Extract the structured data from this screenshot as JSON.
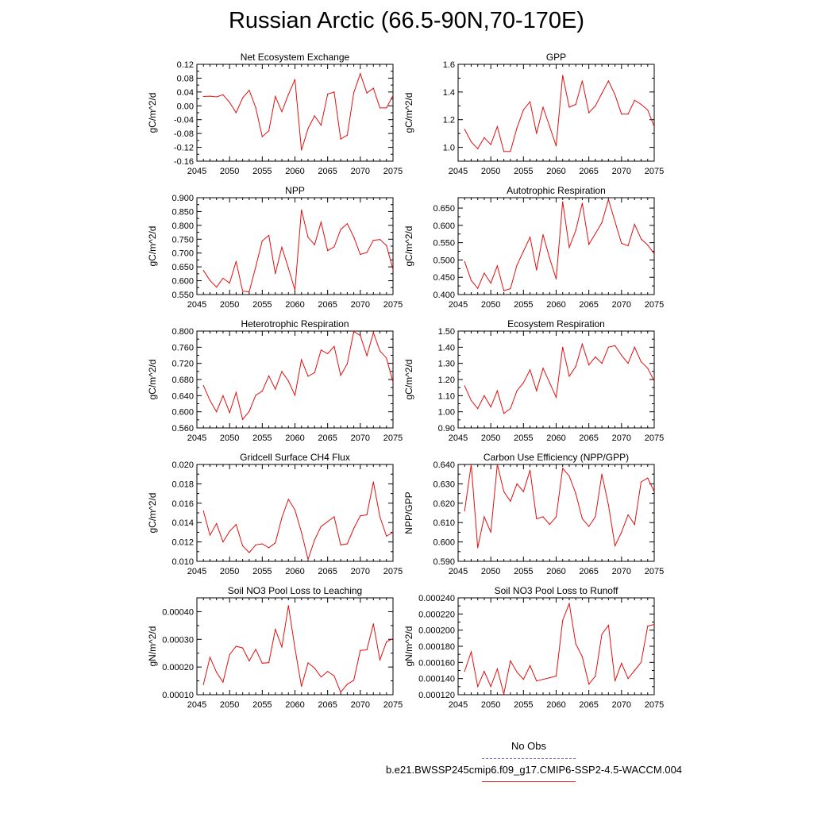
{
  "title": "Russian Arctic (66.5-90N,70-170E)",
  "legend": {
    "obs_label": "No Obs",
    "obs_color": "#6666dd",
    "model_label": "b.e21.BWSSP245cmip6.f09_g17.CMIP6-SSP2-4.5-WACCM.004",
    "model_color": "#e01010"
  },
  "chart_data": [
    {
      "type": "line",
      "title": "Net Ecosystem Exchange",
      "ylabel": "gC/m^2/d",
      "xlim": [
        2045,
        2075
      ],
      "ylim": [
        -0.16,
        0.12
      ],
      "yticks": [
        -0.16,
        -0.12,
        -0.08,
        -0.04,
        0.0,
        0.04,
        0.08,
        0.12
      ],
      "ytick_labels": [
        "-0.16",
        "-0.12",
        "-0.08",
        "-0.04",
        "0.00",
        "0.04",
        "0.08",
        "0.12"
      ],
      "x": [
        2046,
        2047,
        2048,
        2049,
        2050,
        2051,
        2052,
        2053,
        2054,
        2055,
        2056,
        2057,
        2058,
        2059,
        2060,
        2061,
        2062,
        2063,
        2064,
        2065,
        2066,
        2067,
        2068,
        2069,
        2070,
        2071,
        2072,
        2073,
        2074,
        2075
      ],
      "values": [
        0.027,
        0.028,
        0.026,
        0.032,
        0.01,
        -0.02,
        0.023,
        0.045,
        -0.005,
        -0.089,
        -0.072,
        0.027,
        -0.017,
        0.033,
        0.076,
        -0.128,
        -0.066,
        -0.029,
        -0.056,
        0.034,
        0.04,
        -0.096,
        -0.085,
        0.038,
        0.093,
        0.037,
        0.051,
        -0.006,
        -0.006,
        0.03
      ]
    },
    {
      "type": "line",
      "title": "GPP",
      "ylabel": "gC/m^2/d",
      "xlim": [
        2045,
        2075
      ],
      "ylim": [
        0.9,
        1.6
      ],
      "yticks": [
        1.0,
        1.2,
        1.4,
        1.6
      ],
      "ytick_labels": [
        "1.0",
        "1.2",
        "1.4",
        "1.6"
      ],
      "x": [
        2046,
        2047,
        2048,
        2049,
        2050,
        2051,
        2052,
        2053,
        2054,
        2055,
        2056,
        2057,
        2058,
        2059,
        2060,
        2061,
        2062,
        2063,
        2064,
        2065,
        2066,
        2067,
        2068,
        2069,
        2070,
        2071,
        2072,
        2073,
        2074,
        2075
      ],
      "values": [
        1.13,
        1.04,
        0.99,
        1.07,
        1.02,
        1.15,
        0.97,
        0.97,
        1.14,
        1.27,
        1.33,
        1.1,
        1.29,
        1.15,
        1.01,
        1.52,
        1.29,
        1.31,
        1.48,
        1.25,
        1.3,
        1.39,
        1.48,
        1.38,
        1.24,
        1.24,
        1.34,
        1.31,
        1.27,
        1.15
      ]
    },
    {
      "type": "line",
      "title": "NPP",
      "ylabel": "gC/m^2/d",
      "xlim": [
        2045,
        2075
      ],
      "ylim": [
        0.55,
        0.9
      ],
      "yticks": [
        0.55,
        0.6,
        0.65,
        0.7,
        0.75,
        0.8,
        0.85,
        0.9
      ],
      "ytick_labels": [
        "0.550",
        "0.600",
        "0.650",
        "0.700",
        "0.750",
        "0.800",
        "0.850",
        "0.900"
      ],
      "x": [
        2046,
        2047,
        2048,
        2049,
        2050,
        2051,
        2052,
        2053,
        2054,
        2055,
        2056,
        2057,
        2058,
        2059,
        2060,
        2061,
        2062,
        2063,
        2064,
        2065,
        2066,
        2067,
        2068,
        2069,
        2070,
        2071,
        2072,
        2073,
        2074,
        2075
      ],
      "values": [
        0.637,
        0.601,
        0.577,
        0.609,
        0.591,
        0.67,
        0.562,
        0.56,
        0.65,
        0.744,
        0.764,
        0.626,
        0.721,
        0.645,
        0.566,
        0.856,
        0.757,
        0.73,
        0.812,
        0.709,
        0.722,
        0.785,
        0.806,
        0.758,
        0.695,
        0.702,
        0.746,
        0.749,
        0.727,
        0.64
      ]
    },
    {
      "type": "line",
      "title": "Autotrophic Respiration",
      "ylabel": "gC/m^2/d",
      "xlim": [
        2045,
        2075
      ],
      "ylim": [
        0.4,
        0.68
      ],
      "yticks": [
        0.4,
        0.45,
        0.5,
        0.55,
        0.6,
        0.65
      ],
      "ytick_labels": [
        "0.400",
        "0.450",
        "0.500",
        "0.550",
        "0.600",
        "0.650"
      ],
      "x": [
        2046,
        2047,
        2048,
        2049,
        2050,
        2051,
        2052,
        2053,
        2054,
        2055,
        2056,
        2057,
        2058,
        2059,
        2060,
        2061,
        2062,
        2063,
        2064,
        2065,
        2066,
        2067,
        2068,
        2069,
        2070,
        2071,
        2072,
        2073,
        2074,
        2075
      ],
      "values": [
        0.495,
        0.441,
        0.418,
        0.462,
        0.433,
        0.483,
        0.411,
        0.417,
        0.485,
        0.525,
        0.566,
        0.471,
        0.573,
        0.505,
        0.445,
        0.668,
        0.536,
        0.585,
        0.664,
        0.545,
        0.576,
        0.608,
        0.675,
        0.611,
        0.548,
        0.541,
        0.603,
        0.561,
        0.543,
        0.518
      ]
    },
    {
      "type": "line",
      "title": "Heterotrophic Respiration",
      "ylabel": "gC/m^2/d",
      "xlim": [
        2045,
        2075
      ],
      "ylim": [
        0.56,
        0.8
      ],
      "yticks": [
        0.56,
        0.6,
        0.64,
        0.68,
        0.72,
        0.76,
        0.8
      ],
      "ytick_labels": [
        "0.560",
        "0.600",
        "0.640",
        "0.680",
        "0.720",
        "0.760",
        "0.800"
      ],
      "x": [
        2046,
        2047,
        2048,
        2049,
        2050,
        2051,
        2052,
        2053,
        2054,
        2055,
        2056,
        2057,
        2058,
        2059,
        2060,
        2061,
        2062,
        2063,
        2064,
        2065,
        2066,
        2067,
        2068,
        2069,
        2070,
        2071,
        2072,
        2073,
        2074,
        2075
      ],
      "values": [
        0.665,
        0.628,
        0.6,
        0.64,
        0.598,
        0.648,
        0.581,
        0.601,
        0.641,
        0.651,
        0.689,
        0.656,
        0.7,
        0.676,
        0.641,
        0.729,
        0.688,
        0.697,
        0.753,
        0.744,
        0.762,
        0.69,
        0.719,
        0.799,
        0.789,
        0.739,
        0.796,
        0.751,
        0.733,
        0.673
      ]
    },
    {
      "type": "line",
      "title": "Ecosystem Respiration",
      "ylabel": "gC/m^2/d",
      "xlim": [
        2045,
        2075
      ],
      "ylim": [
        0.9,
        1.5
      ],
      "yticks": [
        0.9,
        1.0,
        1.1,
        1.2,
        1.3,
        1.4,
        1.5
      ],
      "ytick_labels": [
        "0.90",
        "1.00",
        "1.10",
        "1.20",
        "1.30",
        "1.40",
        "1.50"
      ],
      "x": [
        2046,
        2047,
        2048,
        2049,
        2050,
        2051,
        2052,
        2053,
        2054,
        2055,
        2056,
        2057,
        2058,
        2059,
        2060,
        2061,
        2062,
        2063,
        2064,
        2065,
        2066,
        2067,
        2068,
        2069,
        2070,
        2071,
        2072,
        2073,
        2074,
        2075
      ],
      "values": [
        1.16,
        1.07,
        1.02,
        1.1,
        1.03,
        1.13,
        0.99,
        1.02,
        1.13,
        1.18,
        1.26,
        1.13,
        1.27,
        1.18,
        1.09,
        1.4,
        1.22,
        1.28,
        1.42,
        1.29,
        1.34,
        1.3,
        1.4,
        1.41,
        1.35,
        1.3,
        1.4,
        1.31,
        1.27,
        1.19
      ]
    },
    {
      "type": "line",
      "title": "Gridcell Surface CH4 Flux",
      "ylabel": "gC/m^2/d",
      "xlim": [
        2045,
        2075
      ],
      "ylim": [
        0.01,
        0.02
      ],
      "yticks": [
        0.01,
        0.012,
        0.014,
        0.016,
        0.018,
        0.02
      ],
      "ytick_labels": [
        "0.010",
        "0.012",
        "0.014",
        "0.016",
        "0.018",
        "0.020"
      ],
      "x": [
        2046,
        2047,
        2048,
        2049,
        2050,
        2051,
        2052,
        2053,
        2054,
        2055,
        2056,
        2057,
        2058,
        2059,
        2060,
        2061,
        2062,
        2063,
        2064,
        2065,
        2066,
        2067,
        2068,
        2069,
        2070,
        2071,
        2072,
        2073,
        2074,
        2075
      ],
      "values": [
        0.0152,
        0.0127,
        0.0139,
        0.012,
        0.0131,
        0.0138,
        0.0116,
        0.0109,
        0.0117,
        0.0118,
        0.0114,
        0.0119,
        0.0145,
        0.0164,
        0.0153,
        0.013,
        0.0102,
        0.0122,
        0.0136,
        0.0141,
        0.0146,
        0.0117,
        0.0118,
        0.0134,
        0.0147,
        0.0148,
        0.0182,
        0.0146,
        0.0126,
        0.013
      ]
    },
    {
      "type": "line",
      "title": "Carbon Use Efficiency (NPP/GPP)",
      "ylabel": "NPP/GPP",
      "xlim": [
        2045,
        2075
      ],
      "ylim": [
        0.59,
        0.64
      ],
      "yticks": [
        0.59,
        0.6,
        0.61,
        0.62,
        0.63,
        0.64
      ],
      "ytick_labels": [
        "0.590",
        "0.600",
        "0.610",
        "0.620",
        "0.630",
        "0.640"
      ],
      "x": [
        2046,
        2047,
        2048,
        2049,
        2050,
        2051,
        2052,
        2053,
        2054,
        2055,
        2056,
        2057,
        2058,
        2059,
        2060,
        2061,
        2062,
        2063,
        2064,
        2065,
        2066,
        2067,
        2068,
        2069,
        2070,
        2071,
        2072,
        2073,
        2074,
        2075
      ],
      "values": [
        0.616,
        0.64,
        0.597,
        0.613,
        0.605,
        0.64,
        0.626,
        0.621,
        0.63,
        0.626,
        0.637,
        0.612,
        0.613,
        0.609,
        0.613,
        0.638,
        0.634,
        0.625,
        0.612,
        0.608,
        0.613,
        0.635,
        0.619,
        0.598,
        0.605,
        0.614,
        0.609,
        0.631,
        0.633,
        0.626
      ]
    },
    {
      "type": "line",
      "title": "Soil NO3 Pool Loss to Leaching",
      "ylabel": "gN/m^2/d",
      "xlim": [
        2045,
        2075
      ],
      "ylim": [
        0.0001,
        0.00045
      ],
      "yticks": [
        0.0001,
        0.0002,
        0.0003,
        0.0004
      ],
      "ytick_labels": [
        "0.00010",
        "0.00020",
        "0.00030",
        "0.00040"
      ],
      "x": [
        2046,
        2047,
        2048,
        2049,
        2050,
        2051,
        2052,
        2053,
        2054,
        2055,
        2056,
        2057,
        2058,
        2059,
        2060,
        2061,
        2062,
        2063,
        2064,
        2065,
        2066,
        2067,
        2068,
        2069,
        2070,
        2071,
        2072,
        2073,
        2074,
        2075
      ],
      "values": [
        0.000137,
        0.000235,
        0.000181,
        0.000145,
        0.000245,
        0.000275,
        0.000269,
        0.000222,
        0.000264,
        0.000214,
        0.000216,
        0.000336,
        0.000272,
        0.000422,
        0.000268,
        0.00013,
        0.000215,
        0.000196,
        0.000164,
        0.000184,
        0.000168,
        0.000109,
        0.000138,
        0.000152,
        0.00026,
        0.000262,
        0.000356,
        0.000226,
        0.000291,
        0.000303
      ]
    },
    {
      "type": "line",
      "title": "Soil NO3 Pool Loss to Runoff",
      "ylabel": "gN/m^2/d",
      "xlim": [
        2045,
        2075
      ],
      "ylim": [
        0.00012,
        0.00024
      ],
      "yticks": [
        0.00012,
        0.00014,
        0.00016,
        0.00018,
        0.0002,
        0.00022,
        0.00024
      ],
      "ytick_labels": [
        "0.000120",
        "0.000140",
        "0.000160",
        "0.000180",
        "0.000200",
        "0.000220",
        "0.000240"
      ],
      "x": [
        2046,
        2047,
        2048,
        2049,
        2050,
        2051,
        2052,
        2053,
        2054,
        2055,
        2056,
        2057,
        2058,
        2059,
        2060,
        2061,
        2062,
        2063,
        2064,
        2065,
        2066,
        2067,
        2068,
        2069,
        2070,
        2071,
        2072,
        2073,
        2074,
        2075
      ],
      "values": [
        0.000149,
        0.000173,
        0.00013,
        0.000149,
        0.00013,
        0.000152,
        0.000121,
        0.000162,
        0.000148,
        0.000139,
        0.000156,
        0.000137,
        0.000139,
        0.000141,
        0.000143,
        0.000212,
        0.000233,
        0.000183,
        0.000167,
        0.000133,
        0.000143,
        0.000195,
        0.000206,
        0.000137,
        0.000159,
        0.00014,
        0.00015,
        0.00016,
        0.000205,
        0.000207
      ]
    }
  ]
}
